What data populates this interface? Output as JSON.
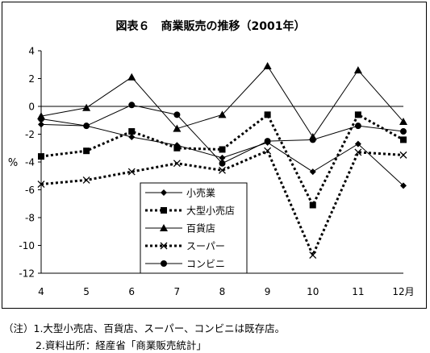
{
  "chart_data": {
    "type": "line",
    "title": "図表６　商業販売の推移（2001年）",
    "ylabel": "%",
    "xlabel": "",
    "categories": [
      "4",
      "5",
      "6",
      "7",
      "8",
      "9",
      "10",
      "11",
      "12月"
    ],
    "ylim": [
      -12,
      4
    ],
    "yticks": [
      4,
      2,
      0,
      -2,
      -4,
      -6,
      -8,
      -10,
      -12
    ],
    "grid": false,
    "legend_position": "lower-left-inside",
    "series": [
      {
        "name": "小売業",
        "marker": "diamond",
        "style": "solid-thin",
        "values": [
          -1.3,
          -1.4,
          -2.2,
          -2.8,
          -3.7,
          -2.6,
          -4.7,
          -2.7,
          -5.7
        ]
      },
      {
        "name": "大型小売店",
        "marker": "square",
        "style": "dotted-thick",
        "values": [
          -3.6,
          -3.2,
          -1.8,
          -3.0,
          -3.1,
          -0.6,
          -7.1,
          -0.6,
          -2.4
        ]
      },
      {
        "name": "百貨店",
        "marker": "triangle",
        "style": "solid-thin",
        "values": [
          -0.7,
          -0.1,
          2.1,
          -1.6,
          -0.6,
          2.9,
          -2.2,
          2.6,
          -1.1
        ]
      },
      {
        "name": "スーパー",
        "marker": "x",
        "style": "dotted-thick",
        "values": [
          -5.6,
          -5.3,
          -4.7,
          -4.1,
          -4.6,
          -3.2,
          -10.7,
          -3.3,
          -3.5
        ]
      },
      {
        "name": "コンビニ",
        "marker": "circle",
        "style": "solid-thin",
        "values": [
          -0.9,
          -1.4,
          0.1,
          -0.6,
          -4.1,
          -2.5,
          -2.4,
          -1.4,
          -1.8
        ]
      }
    ]
  },
  "notes": {
    "line1": "（注）1.大型小売店、百貨店、スーパー、コンビニは既存店。",
    "line2": "2.資料出所：経産省「商業販売統計」"
  }
}
